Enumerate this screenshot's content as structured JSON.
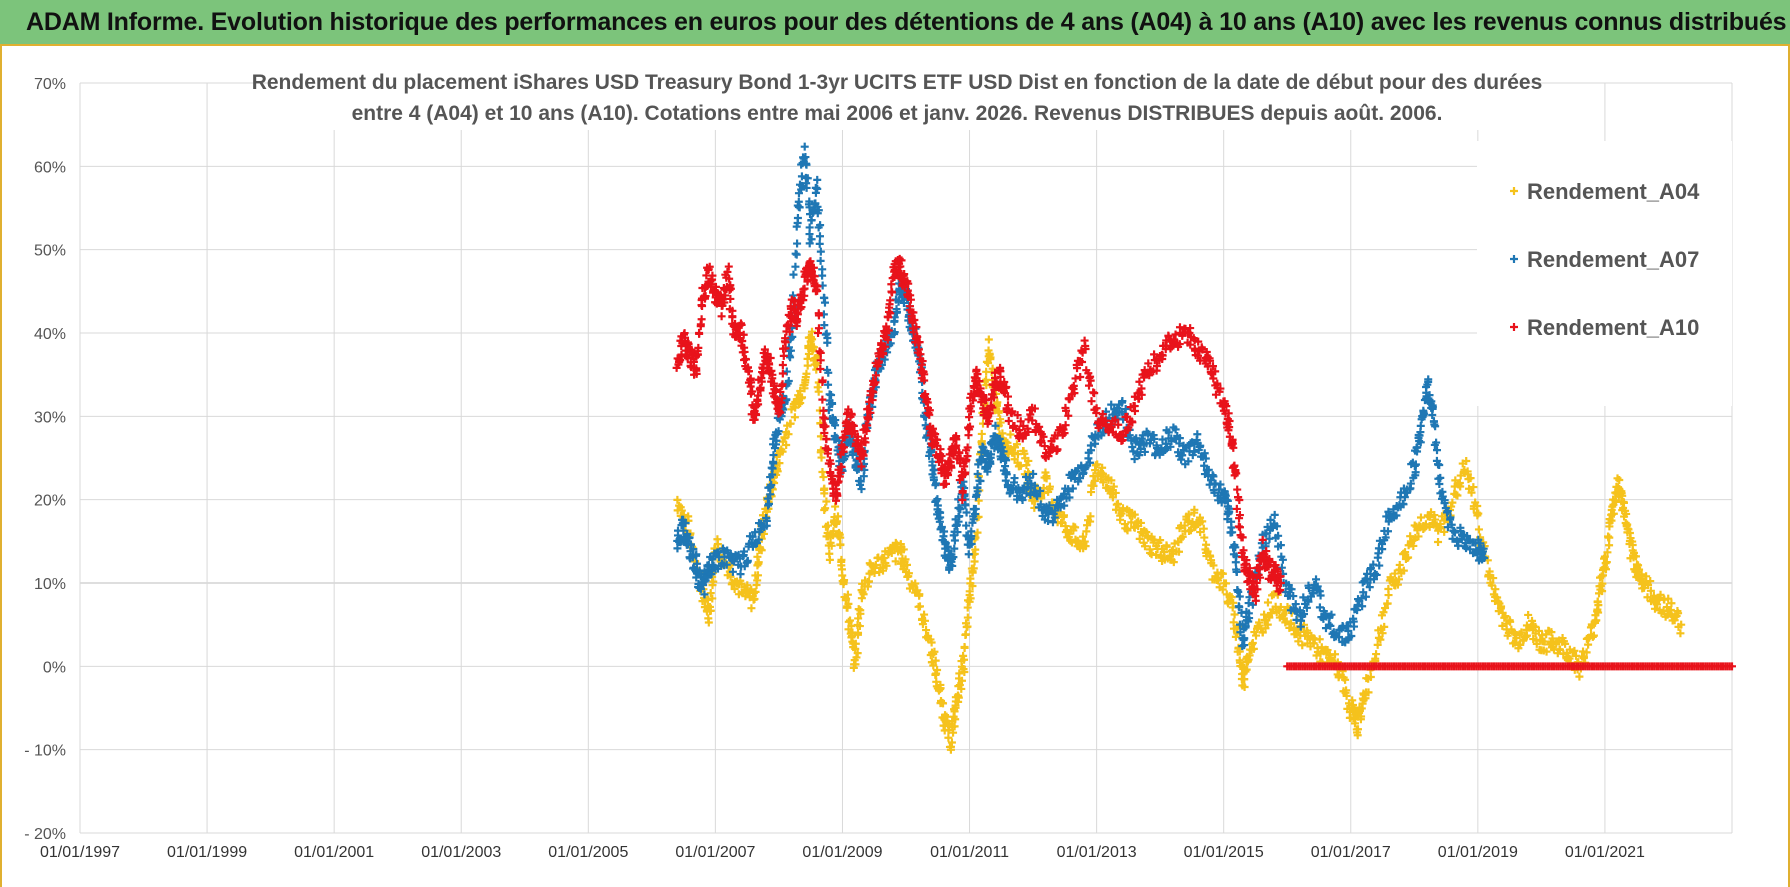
{
  "header": {
    "title": "ADAM Informe. Evolution historique des performances en euros pour des détentions de 4 ans (A04) à 10 ans (A10) avec les revenus connus distribués"
  },
  "chart_data": {
    "type": "scatter",
    "title_lines": [
      "Rendement du placement iShares USD Treasury Bond 1-3yr UCITS ETF USD Dist en fonction de la date de début pour des durées",
      "entre 4 (A04) et 10 ans (A10). Cotations entre mai 2006 et janv. 2026. Revenus DISTRIBUES depuis août. 2006."
    ],
    "xlabel": "",
    "ylabel": "",
    "x_ticks": [
      "01/01/1997",
      "01/01/1999",
      "01/01/2001",
      "01/01/2003",
      "01/01/2005",
      "01/01/2007",
      "01/01/2009",
      "01/01/2011",
      "01/01/2013",
      "01/01/2015",
      "01/01/2017",
      "01/01/2019",
      "01/01/2021"
    ],
    "xlim": [
      1997.0,
      2023.0
    ],
    "y_ticks": [
      "70%",
      "60%",
      "50%",
      "40%",
      "30%",
      "20%",
      "10%",
      "0%",
      "- 10%",
      "- 20%"
    ],
    "ylim": [
      -20,
      70
    ],
    "grid": true,
    "legend_position": "top-right",
    "series": [
      {
        "name": "Rendement_A04",
        "color": "#f5c21c",
        "points": [
          [
            2006.4,
            20
          ],
          [
            2006.6,
            16
          ],
          [
            2006.8,
            9
          ],
          [
            2006.9,
            6
          ],
          [
            2007.0,
            15
          ],
          [
            2007.2,
            12
          ],
          [
            2007.4,
            9
          ],
          [
            2007.6,
            8
          ],
          [
            2007.7,
            14
          ],
          [
            2007.8,
            19
          ],
          [
            2007.9,
            22
          ],
          [
            2008.0,
            25
          ],
          [
            2008.2,
            30
          ],
          [
            2008.4,
            34
          ],
          [
            2008.5,
            40
          ],
          [
            2008.6,
            36
          ],
          [
            2008.7,
            22
          ],
          [
            2008.8,
            14
          ],
          [
            2008.9,
            18
          ],
          [
            2009.0,
            12
          ],
          [
            2009.1,
            6
          ],
          [
            2009.2,
            0
          ],
          [
            2009.3,
            9
          ],
          [
            2009.5,
            12
          ],
          [
            2009.7,
            13
          ],
          [
            2009.9,
            14
          ],
          [
            2010.0,
            12
          ],
          [
            2010.2,
            8
          ],
          [
            2010.4,
            2
          ],
          [
            2010.5,
            -2
          ],
          [
            2010.6,
            -6
          ],
          [
            2010.7,
            -9
          ],
          [
            2010.8,
            -4
          ],
          [
            2010.9,
            0
          ],
          [
            2011.0,
            8
          ],
          [
            2011.1,
            15
          ],
          [
            2011.2,
            28
          ],
          [
            2011.3,
            38
          ],
          [
            2011.4,
            32
          ],
          [
            2011.5,
            28
          ],
          [
            2011.7,
            26
          ],
          [
            2011.9,
            24
          ],
          [
            2012.0,
            20
          ],
          [
            2012.2,
            22
          ],
          [
            2012.4,
            18
          ],
          [
            2012.6,
            16
          ],
          [
            2012.8,
            14
          ],
          [
            2013.0,
            24
          ],
          [
            2013.2,
            22
          ],
          [
            2013.4,
            18
          ],
          [
            2013.6,
            17
          ],
          [
            2013.8,
            15
          ],
          [
            2014.0,
            14
          ],
          [
            2014.2,
            13
          ],
          [
            2014.4,
            17
          ],
          [
            2014.6,
            18
          ],
          [
            2014.8,
            12
          ],
          [
            2015.0,
            10
          ],
          [
            2015.2,
            5
          ],
          [
            2015.3,
            -2
          ],
          [
            2015.4,
            2
          ],
          [
            2015.6,
            5
          ],
          [
            2015.8,
            8
          ],
          [
            2016.0,
            6
          ],
          [
            2016.2,
            4
          ],
          [
            2016.4,
            3
          ],
          [
            2016.6,
            1
          ],
          [
            2016.8,
            0
          ],
          [
            2017.0,
            -5
          ],
          [
            2017.1,
            -7
          ],
          [
            2017.2,
            -4
          ],
          [
            2017.4,
            2
          ],
          [
            2017.6,
            9
          ],
          [
            2017.8,
            12
          ],
          [
            2018.0,
            16
          ],
          [
            2018.2,
            18
          ],
          [
            2018.4,
            16
          ],
          [
            2018.6,
            20
          ],
          [
            2018.8,
            24
          ],
          [
            2019.0,
            18
          ],
          [
            2019.2,
            10
          ],
          [
            2019.4,
            6
          ],
          [
            2019.6,
            3
          ],
          [
            2019.8,
            5
          ],
          [
            2020.0,
            3
          ],
          [
            2020.2,
            3
          ],
          [
            2020.4,
            2
          ],
          [
            2020.6,
            0
          ],
          [
            2020.8,
            4
          ],
          [
            2020.9,
            8
          ],
          [
            2021.0,
            12
          ],
          [
            2021.1,
            18
          ],
          [
            2021.2,
            22
          ],
          [
            2021.3,
            19
          ],
          [
            2021.4,
            14
          ],
          [
            2021.5,
            12
          ],
          [
            2021.6,
            10
          ],
          [
            2021.8,
            8
          ],
          [
            2022.0,
            7
          ],
          [
            2022.2,
            5
          ]
        ]
      },
      {
        "name": "Rendement_A07",
        "color": "#1f77b4",
        "points": [
          [
            2006.4,
            15
          ],
          [
            2006.5,
            17
          ],
          [
            2006.6,
            14
          ],
          [
            2006.7,
            12
          ],
          [
            2006.8,
            9
          ],
          [
            2006.9,
            12
          ],
          [
            2007.0,
            13
          ],
          [
            2007.2,
            13
          ],
          [
            2007.4,
            12
          ],
          [
            2007.6,
            15
          ],
          [
            2007.8,
            18
          ],
          [
            2007.9,
            25
          ],
          [
            2008.0,
            30
          ],
          [
            2008.1,
            32
          ],
          [
            2008.2,
            40
          ],
          [
            2008.3,
            55
          ],
          [
            2008.4,
            62
          ],
          [
            2008.5,
            52
          ],
          [
            2008.6,
            58
          ],
          [
            2008.7,
            45
          ],
          [
            2008.8,
            32
          ],
          [
            2008.9,
            27
          ],
          [
            2009.0,
            24
          ],
          [
            2009.1,
            28
          ],
          [
            2009.2,
            25
          ],
          [
            2009.3,
            22
          ],
          [
            2009.4,
            30
          ],
          [
            2009.5,
            34
          ],
          [
            2009.6,
            37
          ],
          [
            2009.8,
            40
          ],
          [
            2009.9,
            46
          ],
          [
            2010.0,
            44
          ],
          [
            2010.1,
            41
          ],
          [
            2010.2,
            38
          ],
          [
            2010.3,
            30
          ],
          [
            2010.4,
            25
          ],
          [
            2010.5,
            19
          ],
          [
            2010.6,
            15
          ],
          [
            2010.7,
            12
          ],
          [
            2010.8,
            17
          ],
          [
            2010.9,
            22
          ],
          [
            2011.0,
            14
          ],
          [
            2011.1,
            20
          ],
          [
            2011.2,
            26
          ],
          [
            2011.3,
            24
          ],
          [
            2011.4,
            28
          ],
          [
            2011.5,
            26
          ],
          [
            2011.6,
            22
          ],
          [
            2011.8,
            21
          ],
          [
            2012.0,
            22
          ],
          [
            2012.2,
            18
          ],
          [
            2012.4,
            19
          ],
          [
            2012.6,
            22
          ],
          [
            2012.8,
            24
          ],
          [
            2013.0,
            28
          ],
          [
            2013.2,
            30
          ],
          [
            2013.4,
            31
          ],
          [
            2013.6,
            26
          ],
          [
            2013.8,
            27
          ],
          [
            2014.0,
            26
          ],
          [
            2014.2,
            28
          ],
          [
            2014.4,
            25
          ],
          [
            2014.6,
            27
          ],
          [
            2014.8,
            22
          ],
          [
            2015.0,
            20
          ],
          [
            2015.1,
            18
          ],
          [
            2015.2,
            12
          ],
          [
            2015.3,
            3
          ],
          [
            2015.4,
            7
          ],
          [
            2015.6,
            14
          ],
          [
            2015.8,
            18
          ],
          [
            2016.0,
            9
          ],
          [
            2016.2,
            6
          ],
          [
            2016.4,
            10
          ],
          [
            2016.6,
            6
          ],
          [
            2016.8,
            4
          ],
          [
            2017.0,
            4
          ],
          [
            2017.2,
            9
          ],
          [
            2017.4,
            12
          ],
          [
            2017.6,
            18
          ],
          [
            2017.8,
            20
          ],
          [
            2018.0,
            24
          ],
          [
            2018.1,
            28
          ],
          [
            2018.2,
            34
          ],
          [
            2018.3,
            30
          ],
          [
            2018.4,
            22
          ],
          [
            2018.6,
            16
          ],
          [
            2018.8,
            15
          ],
          [
            2019.0,
            14
          ],
          [
            2019.1,
            13
          ]
        ]
      },
      {
        "name": "Rendement_A10",
        "color": "#e8131b",
        "points": [
          [
            2006.4,
            37
          ],
          [
            2006.5,
            39
          ],
          [
            2006.6,
            37
          ],
          [
            2006.7,
            36
          ],
          [
            2006.8,
            44
          ],
          [
            2006.9,
            47
          ],
          [
            2007.0,
            45
          ],
          [
            2007.1,
            43
          ],
          [
            2007.2,
            47
          ],
          [
            2007.3,
            40
          ],
          [
            2007.4,
            40
          ],
          [
            2007.5,
            36
          ],
          [
            2007.6,
            30
          ],
          [
            2007.7,
            34
          ],
          [
            2007.8,
            38
          ],
          [
            2007.9,
            34
          ],
          [
            2008.0,
            30
          ],
          [
            2008.1,
            39
          ],
          [
            2008.2,
            43
          ],
          [
            2008.3,
            42
          ],
          [
            2008.4,
            46
          ],
          [
            2008.5,
            48
          ],
          [
            2008.6,
            45
          ],
          [
            2008.7,
            30
          ],
          [
            2008.8,
            24
          ],
          [
            2008.9,
            20
          ],
          [
            2009.0,
            26
          ],
          [
            2009.1,
            30
          ],
          [
            2009.2,
            28
          ],
          [
            2009.3,
            25
          ],
          [
            2009.4,
            30
          ],
          [
            2009.5,
            34
          ],
          [
            2009.6,
            38
          ],
          [
            2009.7,
            40
          ],
          [
            2009.8,
            47
          ],
          [
            2009.9,
            48
          ],
          [
            2010.0,
            46
          ],
          [
            2010.1,
            42
          ],
          [
            2010.2,
            38
          ],
          [
            2010.3,
            33
          ],
          [
            2010.4,
            28
          ],
          [
            2010.5,
            26
          ],
          [
            2010.6,
            22
          ],
          [
            2010.7,
            25
          ],
          [
            2010.8,
            27
          ],
          [
            2010.9,
            21
          ],
          [
            2011.0,
            30
          ],
          [
            2011.1,
            35
          ],
          [
            2011.2,
            32
          ],
          [
            2011.3,
            30
          ],
          [
            2011.4,
            34
          ],
          [
            2011.5,
            35
          ],
          [
            2011.6,
            31
          ],
          [
            2011.8,
            28
          ],
          [
            2012.0,
            30
          ],
          [
            2012.2,
            26
          ],
          [
            2012.4,
            27
          ],
          [
            2012.6,
            32
          ],
          [
            2012.8,
            38
          ],
          [
            2013.0,
            30
          ],
          [
            2013.2,
            29
          ],
          [
            2013.4,
            28
          ],
          [
            2013.6,
            31
          ],
          [
            2013.8,
            36
          ],
          [
            2014.0,
            37
          ],
          [
            2014.2,
            39
          ],
          [
            2014.4,
            40
          ],
          [
            2014.6,
            38
          ],
          [
            2014.8,
            36
          ],
          [
            2015.0,
            31
          ],
          [
            2015.1,
            29
          ],
          [
            2015.2,
            22
          ],
          [
            2015.3,
            13
          ],
          [
            2015.4,
            11
          ],
          [
            2015.5,
            9
          ],
          [
            2015.6,
            14
          ],
          [
            2015.7,
            12
          ],
          [
            2015.8,
            11
          ],
          [
            2015.9,
            10
          ]
        ]
      }
    ],
    "flat_segment": {
      "series": "Rendement_A10",
      "x_start": 2016.0,
      "x_end": 2023.0,
      "y": 0
    }
  }
}
